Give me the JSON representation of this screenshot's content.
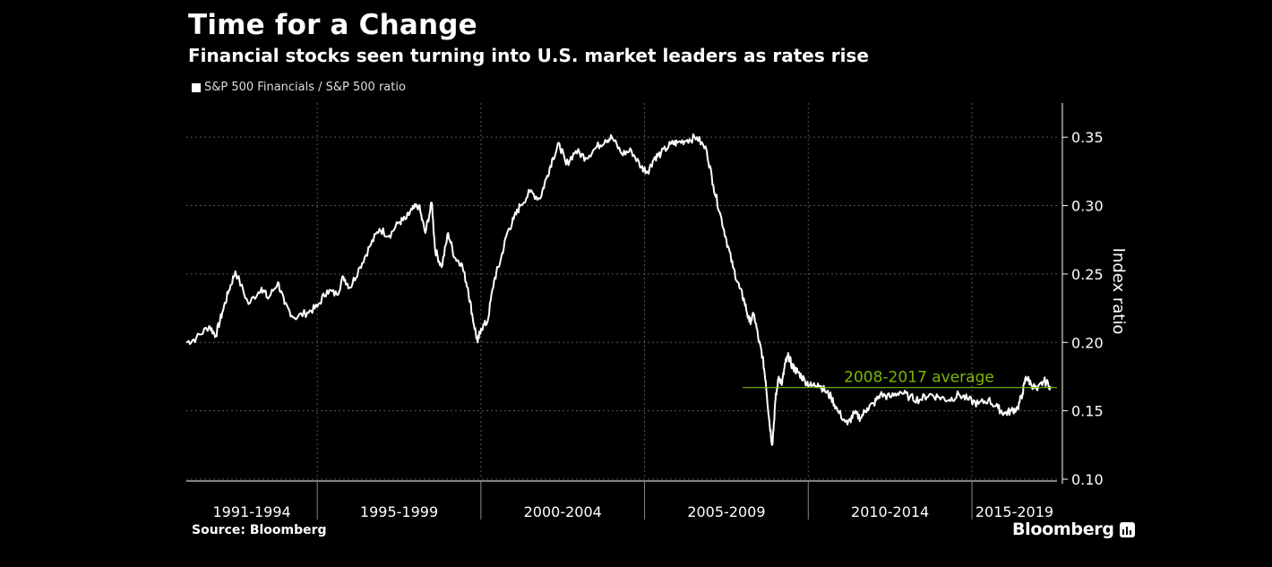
{
  "header": {
    "title": "Time for a Change",
    "subtitle": "Financial stocks seen turning into U.S. market leaders as rates rise",
    "legend_label": "S&P 500 Financials / S&P 500 ratio"
  },
  "footer": {
    "source": "Source: Bloomberg",
    "brand": "Bloomberg"
  },
  "colors": {
    "background": "#000000",
    "series": "#ffffff",
    "average_line": "#7ab800",
    "grid": "#555555"
  },
  "chart_data": {
    "type": "line",
    "title": "Time for a Change",
    "subtitle": "Financial stocks seen turning into U.S. market leaders as rates rise",
    "ylabel": "Index ratio",
    "xlabel": "",
    "ylim": [
      0.1,
      0.375
    ],
    "xlim": [
      1991.0,
      2017.6
    ],
    "y_ticks": [
      0.1,
      0.15,
      0.2,
      0.25,
      0.3,
      0.35
    ],
    "y_tick_labels": [
      "0.10",
      "0.15",
      "0.20",
      "0.25",
      "0.30",
      "0.35"
    ],
    "x_period_labels": [
      {
        "label": "1991-1994",
        "start": 1991.0,
        "end": 1995.0
      },
      {
        "label": "1995-1999",
        "start": 1995.0,
        "end": 2000.0
      },
      {
        "label": "2000-2004",
        "start": 2000.0,
        "end": 2005.0
      },
      {
        "label": "2005-2009",
        "start": 2005.0,
        "end": 2010.0
      },
      {
        "label": "2010-2014",
        "start": 2010.0,
        "end": 2015.0
      },
      {
        "label": "2015-2019",
        "start": 2015.0,
        "end": 2020.0
      }
    ],
    "grid": true,
    "legend_position": "top-left",
    "series": [
      {
        "name": "S&P 500 Financials / S&P 500 ratio",
        "x": [
          1991.0,
          1991.3,
          1991.7,
          1991.9,
          1992.1,
          1992.3,
          1992.5,
          1992.9,
          1993.3,
          1993.5,
          1993.8,
          1994.0,
          1994.3,
          1994.7,
          1995.0,
          1995.3,
          1995.6,
          1995.8,
          1996.0,
          1996.3,
          1996.6,
          1996.9,
          1997.2,
          1997.5,
          1997.7,
          1997.9,
          1998.1,
          1998.3,
          1998.5,
          1998.6,
          1998.8,
          1999.0,
          1999.2,
          1999.4,
          1999.6,
          1999.75,
          1999.9,
          2000.0,
          2000.2,
          2000.4,
          2000.6,
          2000.8,
          2001.0,
          2001.2,
          2001.5,
          2001.8,
          2002.0,
          2002.2,
          2002.4,
          2002.6,
          2002.9,
          2003.2,
          2003.5,
          2003.8,
          2004.0,
          2004.3,
          2004.6,
          2004.9,
          2005.1,
          2005.3,
          2005.5,
          2005.8,
          2006.0,
          2006.3,
          2006.6,
          2006.9,
          2007.1,
          2007.3,
          2007.5,
          2007.7,
          2007.9,
          2008.05,
          2008.2,
          2008.35,
          2008.5,
          2008.6,
          2008.7,
          2008.8,
          2008.9,
          2009.0,
          2009.1,
          2009.2,
          2009.3,
          2009.4,
          2009.5,
          2009.6,
          2009.7,
          2009.9,
          2010.1,
          2010.3,
          2010.5,
          2010.7,
          2010.9,
          2011.2,
          2011.4,
          2011.6,
          2011.8,
          2012.0,
          2012.2,
          2012.5,
          2012.8,
          2013.1,
          2013.4,
          2013.7,
          2014.0,
          2014.3,
          2014.6,
          2014.9,
          2015.2,
          2015.5,
          2015.8,
          2016.0,
          2016.2,
          2016.4,
          2016.55,
          2016.65,
          2016.8,
          2017.0,
          2017.2,
          2017.4
        ],
        "values": [
          0.2,
          0.203,
          0.212,
          0.205,
          0.222,
          0.238,
          0.252,
          0.228,
          0.24,
          0.232,
          0.244,
          0.228,
          0.218,
          0.222,
          0.226,
          0.238,
          0.235,
          0.248,
          0.24,
          0.255,
          0.27,
          0.283,
          0.278,
          0.288,
          0.29,
          0.297,
          0.3,
          0.28,
          0.302,
          0.268,
          0.255,
          0.28,
          0.262,
          0.258,
          0.24,
          0.218,
          0.2,
          0.21,
          0.215,
          0.245,
          0.26,
          0.28,
          0.29,
          0.3,
          0.31,
          0.305,
          0.32,
          0.335,
          0.345,
          0.33,
          0.34,
          0.335,
          0.342,
          0.348,
          0.35,
          0.338,
          0.34,
          0.328,
          0.325,
          0.335,
          0.338,
          0.345,
          0.346,
          0.348,
          0.35,
          0.34,
          0.315,
          0.295,
          0.275,
          0.255,
          0.24,
          0.23,
          0.215,
          0.22,
          0.2,
          0.19,
          0.172,
          0.145,
          0.125,
          0.158,
          0.175,
          0.17,
          0.185,
          0.19,
          0.183,
          0.18,
          0.178,
          0.172,
          0.168,
          0.17,
          0.165,
          0.16,
          0.15,
          0.14,
          0.148,
          0.145,
          0.152,
          0.155,
          0.162,
          0.16,
          0.164,
          0.16,
          0.158,
          0.162,
          0.16,
          0.158,
          0.162,
          0.158,
          0.155,
          0.158,
          0.152,
          0.148,
          0.15,
          0.152,
          0.163,
          0.175,
          0.17,
          0.165,
          0.172,
          0.168
        ]
      }
    ],
    "annotations": [
      {
        "text": "2008-2017 average",
        "value": 0.167,
        "x_start": 2008.0,
        "x_end": 2017.6
      }
    ]
  }
}
